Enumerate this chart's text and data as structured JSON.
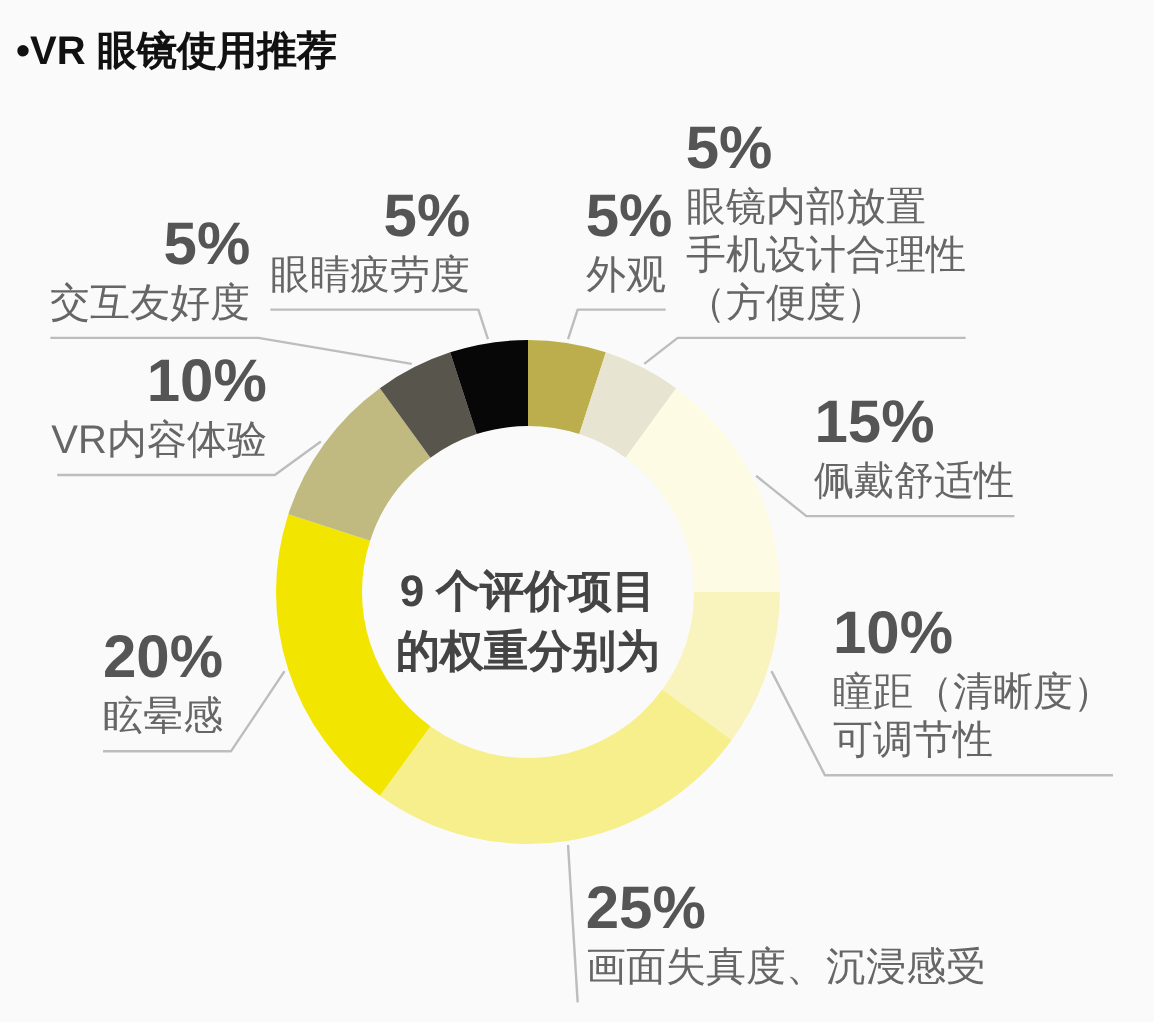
{
  "chart_data": {
    "type": "donut",
    "title": "•VR 眼镜使用推荐",
    "categories": [
      "外观",
      "眼镜内部放置手机设计合理性（方便度）",
      "佩戴舒适性",
      "瞳距（清晰度）可调节性",
      "画面失真度、沉浸感受",
      "眩晕感",
      "VR内容体验",
      "交互友好度",
      "眼睛疲劳度"
    ],
    "values": [
      5,
      5,
      15,
      10,
      25,
      20,
      10,
      5,
      5
    ],
    "value_labels": [
      "5%",
      "5%",
      "15%",
      "10%",
      "25%",
      "20%",
      "10%",
      "5%",
      "5%"
    ],
    "colors": [
      "#bcae4c",
      "#e7e4d2",
      "#fdfbe3",
      "#f9f4bd",
      "#f6ef8c",
      "#f2e500",
      "#c0ba80",
      "#58554c",
      "#070707"
    ],
    "annotations": [
      "9 个评价项目的权重分别为"
    ]
  }
}
